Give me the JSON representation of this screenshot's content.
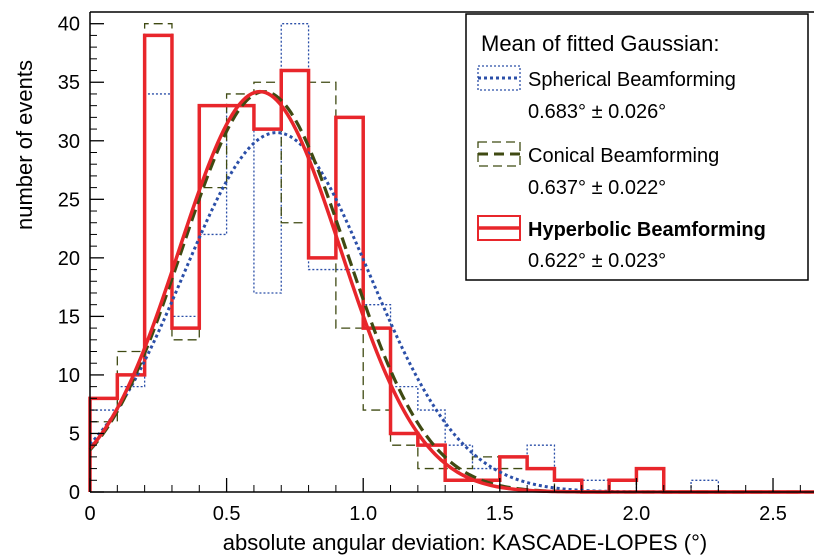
{
  "chart_data": {
    "type": "histogram",
    "xlabel": "absolute angular deviation: KASCADE-LOPES (°)",
    "ylabel": "number of events",
    "xlim": [
      0,
      2.65
    ],
    "ylim": [
      0,
      41
    ],
    "x_ticks": [
      "0",
      "0.5",
      "1.0",
      "1.5",
      "2.0",
      "2.5"
    ],
    "x_tick_values": [
      0,
      0.5,
      1.0,
      1.5,
      2.0,
      2.5
    ],
    "y_ticks": [
      "0",
      "5",
      "10",
      "15",
      "20",
      "25",
      "30",
      "35",
      "40"
    ],
    "y_tick_values": [
      0,
      5,
      10,
      15,
      20,
      25,
      30,
      35,
      40
    ],
    "bin_width": 0.1,
    "bin_edges_start": 0,
    "legend": {
      "position": "top-right",
      "title": "Mean of fitted Gaussian:",
      "entries": [
        {
          "label": "Spherical Beamforming",
          "value": "0.683° ± 0.026°"
        },
        {
          "label": "Conical Beamforming",
          "value": "0.637° ± 0.022°"
        },
        {
          "label": "Hyperbolic Beamforming",
          "value": "0.622° ± 0.023°"
        }
      ]
    },
    "series": [
      {
        "name": "Spherical Beamforming",
        "color": "#2b4fa8",
        "style": "dotted",
        "counts": [
          7,
          9,
          34,
          15,
          22,
          33,
          17,
          40,
          19,
          19,
          16,
          9,
          7,
          4,
          2,
          3,
          4,
          1,
          1,
          1,
          0,
          0,
          1,
          0,
          0,
          0
        ],
        "fit_mean": 0.683,
        "fit_sigma": 0.34,
        "fit_amplitude": 30.7
      },
      {
        "name": "Conical Beamforming",
        "color": "#3f4a12",
        "style": "dashed",
        "counts": [
          6,
          12,
          40,
          13,
          26,
          34,
          35,
          23,
          35,
          14,
          7,
          4,
          2,
          2,
          3,
          2,
          2,
          0,
          0,
          1,
          0,
          0,
          0,
          0,
          0,
          0
        ],
        "fit_mean": 0.637,
        "fit_sigma": 0.3,
        "fit_amplitude": 34.2
      },
      {
        "name": "Hyperbolic Beamforming",
        "color": "#e8262b",
        "style": "solid",
        "counts": [
          8,
          10,
          39,
          14,
          33,
          33,
          31,
          36,
          20,
          32,
          14,
          5,
          4,
          1,
          1,
          3,
          2,
          1,
          0,
          1,
          2,
          0,
          0,
          0,
          0,
          0
        ],
        "fit_mean": 0.622,
        "fit_sigma": 0.295,
        "fit_amplitude": 34.2
      }
    ]
  }
}
